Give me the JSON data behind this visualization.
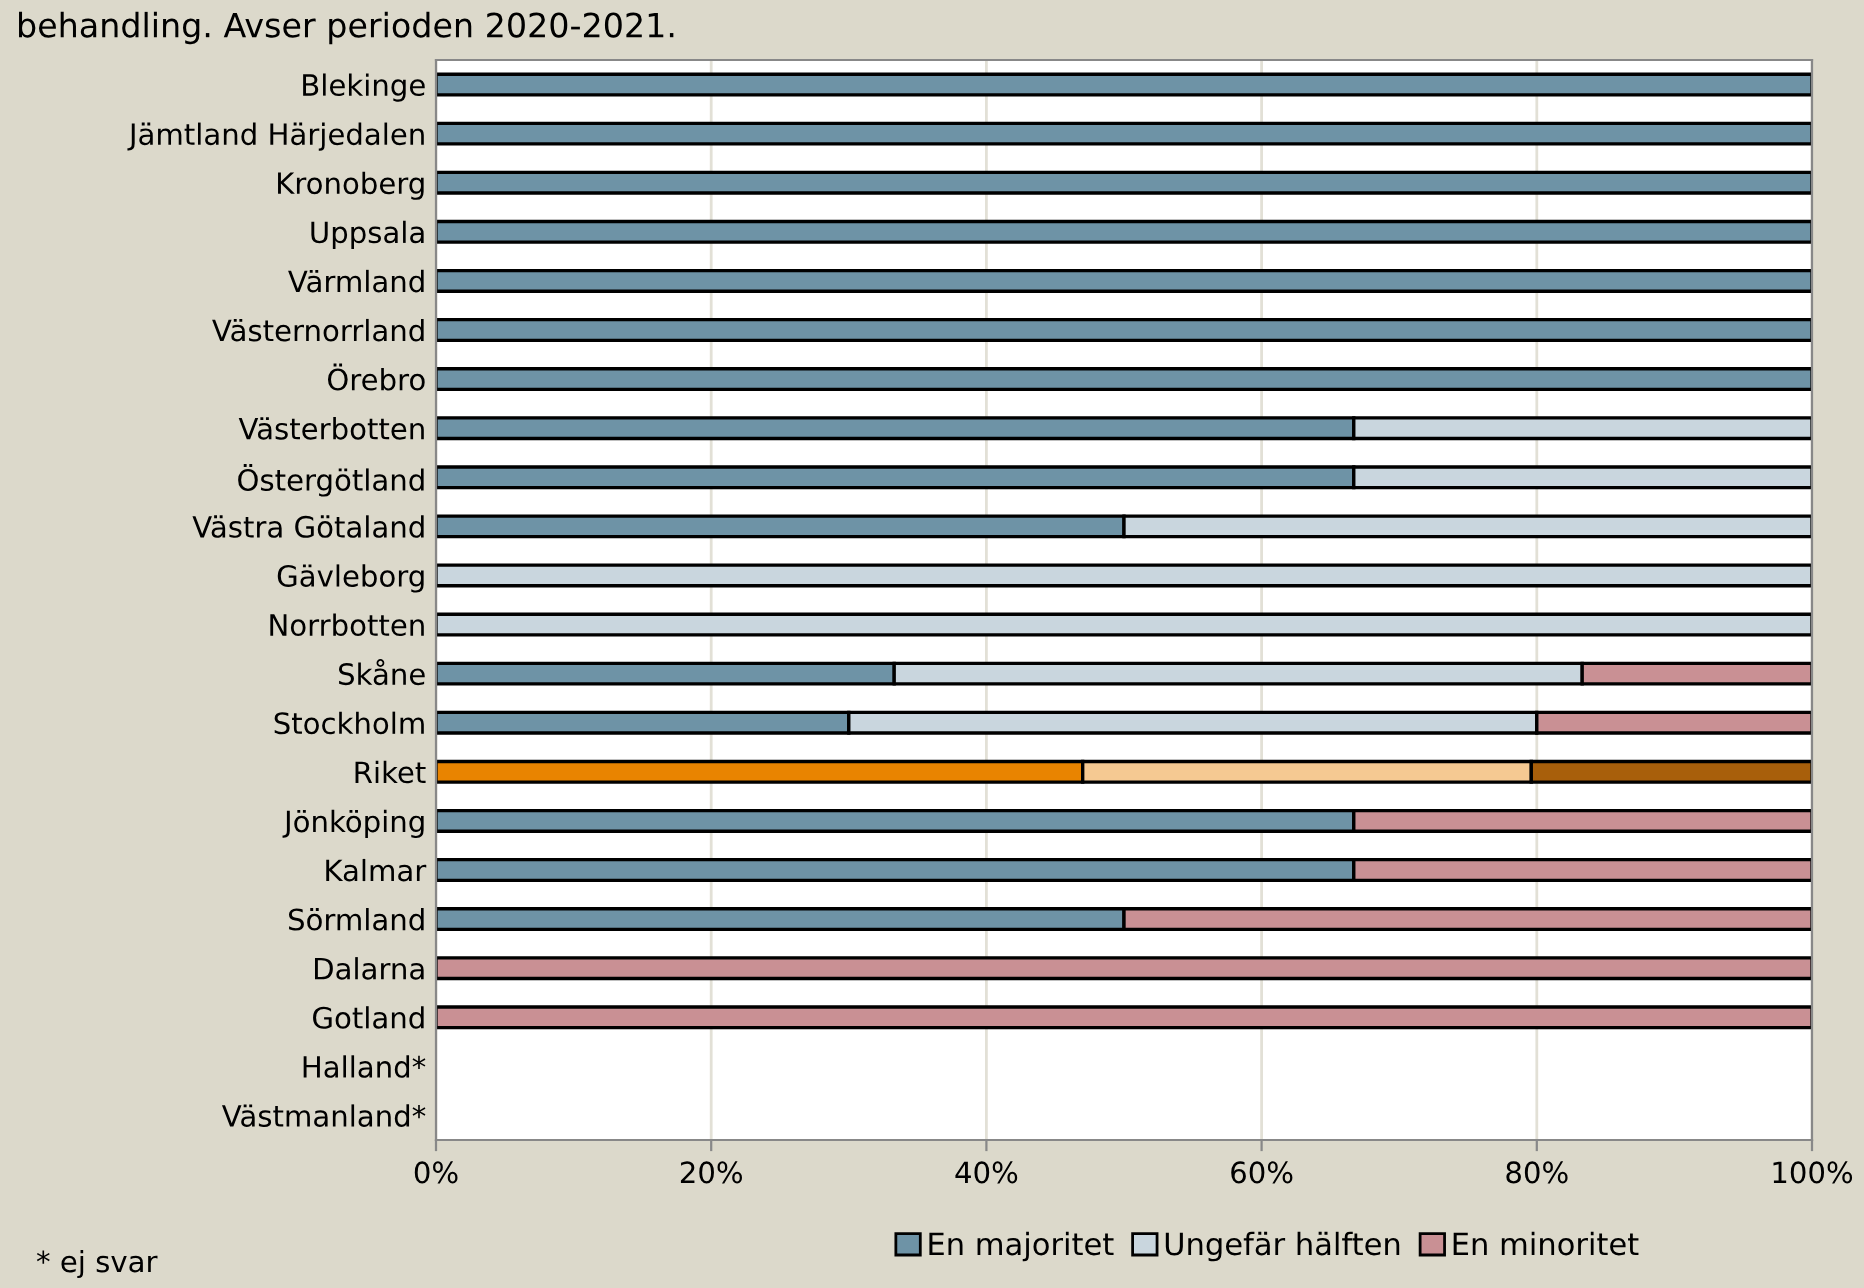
{
  "chart_data": {
    "type": "bar",
    "orientation": "horizontal",
    "stacked": true,
    "title": "behandling. Avser perioden 2020-2021.",
    "categories": [
      "Blekinge",
      "Jämtland Härjedalen",
      "Kronoberg",
      "Uppsala",
      "Värmland",
      "Västernorrland",
      "Örebro",
      "Västerbotten",
      "Östergötland",
      "Västra Götaland",
      "Gävleborg",
      "Norrbotten",
      "Skåne",
      "Stockholm",
      "Riket",
      "Jönköping",
      "Kalmar",
      "Sörmland",
      "Dalarna",
      "Gotland",
      "Halland*",
      "Västmanland*"
    ],
    "series": [
      {
        "name": "En majoritet",
        "color": "#6e93a6",
        "colors": [
          "#6e93a6",
          "#6e93a6",
          "#6e93a6",
          "#6e93a6",
          "#6e93a6",
          "#6e93a6",
          "#6e93a6",
          "#6e93a6",
          "#6e93a6",
          "#6e93a6",
          "#6e93a6",
          "#6e93a6",
          "#6e93a6",
          "#6e93a6",
          "#e98400",
          "#6e93a6",
          "#6e93a6",
          "#6e93a6",
          "#6e93a6",
          "#6e93a6",
          "#6e93a6",
          "#6e93a6"
        ],
        "values": [
          100,
          100,
          100,
          100,
          100,
          100,
          100,
          66.7,
          66.7,
          50,
          0,
          0,
          33.3,
          30,
          47,
          66.7,
          66.7,
          50,
          0,
          0,
          null,
          null
        ]
      },
      {
        "name": "Ungefär hälften",
        "color": "#c9d6de",
        "colors": [
          "#c9d6de",
          "#c9d6de",
          "#c9d6de",
          "#c9d6de",
          "#c9d6de",
          "#c9d6de",
          "#c9d6de",
          "#c9d6de",
          "#c9d6de",
          "#c9d6de",
          "#c9d6de",
          "#c9d6de",
          "#c9d6de",
          "#c9d6de",
          "#f5c992",
          "#c9d6de",
          "#c9d6de",
          "#c9d6de",
          "#c9d6de",
          "#c9d6de",
          "#c9d6de",
          "#c9d6de"
        ],
        "values": [
          0,
          0,
          0,
          0,
          0,
          0,
          0,
          33.3,
          33.3,
          50,
          100,
          100,
          50,
          50,
          32.6,
          0,
          0,
          0,
          0,
          0,
          null,
          null
        ]
      },
      {
        "name": "En minoritet",
        "color": "#c99094",
        "colors": [
          "#c99094",
          "#c99094",
          "#c99094",
          "#c99094",
          "#c99094",
          "#c99094",
          "#c99094",
          "#c99094",
          "#c99094",
          "#c99094",
          "#c99094",
          "#c99094",
          "#c99094",
          "#c99094",
          "#a85f0b",
          "#c99094",
          "#c99094",
          "#c99094",
          "#c99094",
          "#c99094",
          "#c99094",
          "#c99094"
        ],
        "values": [
          0,
          0,
          0,
          0,
          0,
          0,
          0,
          0,
          0,
          0,
          0,
          0,
          16.7,
          20,
          20.4,
          33.3,
          33.3,
          50,
          100,
          100,
          null,
          null
        ]
      }
    ],
    "xlim": [
      0,
      100
    ],
    "xticks": [
      {
        "value": 0,
        "label": "0%"
      },
      {
        "value": 20,
        "label": "20%"
      },
      {
        "value": 40,
        "label": "40%"
      },
      {
        "value": 60,
        "label": "60%"
      },
      {
        "value": 80,
        "label": "80%"
      },
      {
        "value": 100,
        "label": "100%"
      }
    ],
    "grid": "x",
    "legend": "bottom",
    "annotations": [
      "* ej svar"
    ]
  }
}
